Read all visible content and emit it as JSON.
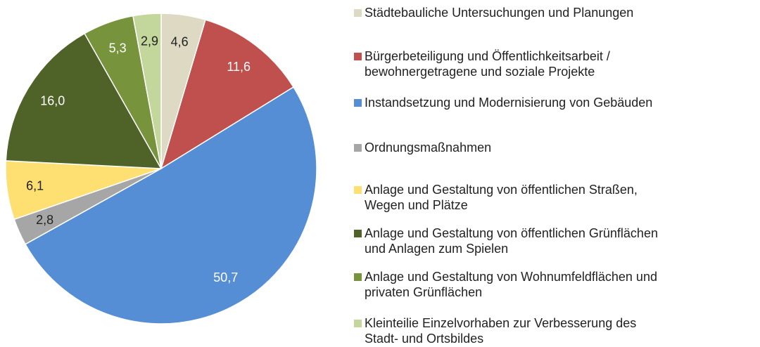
{
  "chart_data": {
    "type": "pie",
    "categories": [
      "Städtebauliche Untersuchungen und Planungen",
      "Bürgerbeteiligung und Öffentlichkeitsarbeit /\nbewohnergetragene und soziale Projekte",
      "Instandsetzung und Modernisierung von Gebäuden",
      "Ordnungsmaßnahmen",
      "Anlage und Gestaltung von öffentlichen Straßen,\nWegen und Plätze",
      "Anlage und Gestaltung von öffentlichen Grünflächen\nund Anlagen zum Spielen",
      "Anlage und Gestaltung von Wohnumfeldflächen und\nprivaten Grünflächen",
      "Kleinteilie Einzelvorhaben zur Verbesserung des\nStadt- und Ortsbildes"
    ],
    "values": [
      4.6,
      11.6,
      50.7,
      2.8,
      6.1,
      16.0,
      5.3,
      2.9
    ],
    "value_labels": [
      "4,6",
      "11,6",
      "50,7",
      "2,8",
      "6,1",
      "16,0",
      "5,3",
      "2,9"
    ],
    "colors": [
      "#ddd9c3",
      "#c0504d",
      "#558ed5",
      "#a6a6a6",
      "#fedf72",
      "#4f6228",
      "#77933c",
      "#c3d69b"
    ],
    "legend": "right"
  }
}
